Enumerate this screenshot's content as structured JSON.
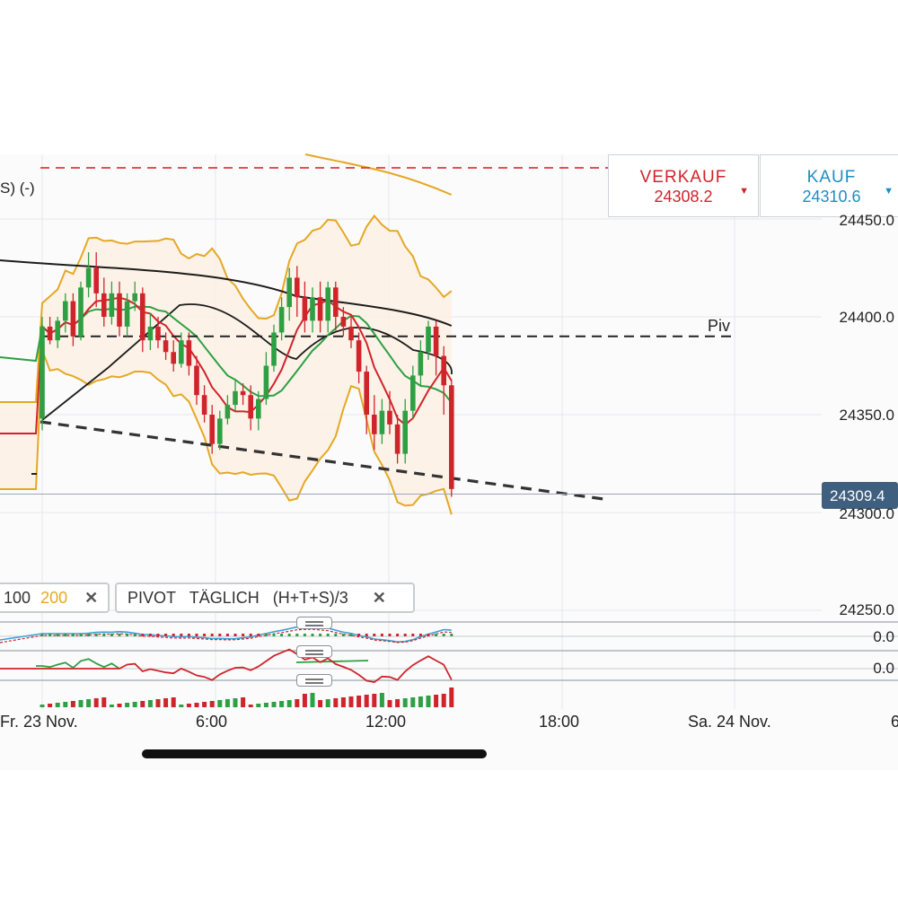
{
  "header": {
    "indicator_text": "S) (-)"
  },
  "sell": {
    "label": "VERKAUF",
    "price": "24308.2",
    "color": "#d0242b"
  },
  "buy": {
    "label": "KAUF",
    "price": "24310.6",
    "color": "#1a8fc2"
  },
  "pivot_label": "Piv",
  "current_price": "24309.4",
  "y_axis": {
    "ticks": [
      "24450.0",
      "24400.0",
      "24350.0",
      "24300.0",
      "24250.0"
    ]
  },
  "oscillators": {
    "osc1_value": "0.0",
    "osc2_value": "0.0"
  },
  "x_axis": {
    "ticks": [
      "Fr. 23 Nov.",
      "6:00",
      "12:00",
      "18:00",
      "Sa. 24 Nov.",
      "6"
    ]
  },
  "legend_ma": {
    "ma100": "100",
    "ma200": "200",
    "close": "✕"
  },
  "legend_pivot": {
    "name": "PIVOT",
    "mode": "TÄGLICH",
    "formula": "(H+T+S)/3",
    "close": "✕"
  },
  "colors": {
    "up": "#2ea043",
    "down": "#d0242b",
    "bollinger": "#e5a823",
    "pivot": "#222222",
    "price_tag": "#3f5f7f"
  },
  "chart_data": {
    "type": "candlestick",
    "y_ticks": [
      24450,
      24400,
      24350,
      24300,
      24250
    ],
    "x_ticks": [
      "Fr. 23 Nov.",
      "6:00",
      "12:00",
      "18:00",
      "Sa. 24 Nov."
    ],
    "pivot": 24390,
    "current": 24309.4,
    "ylim": [
      24240,
      24470
    ],
    "candles": [
      [
        24348,
        24395,
        24342,
        24400
      ],
      [
        24395,
        24388,
        24386,
        24400
      ],
      [
        24388,
        24398,
        24384,
        24400
      ],
      [
        24398,
        24408,
        24392,
        24412
      ],
      [
        24408,
        24390,
        24385,
        24412
      ],
      [
        24390,
        24415,
        24388,
        24418
      ],
      [
        24415,
        24425,
        24410,
        24433
      ],
      [
        24425,
        24412,
        24405,
        24433
      ],
      [
        24412,
        24400,
        24395,
        24420
      ],
      [
        24400,
        24412,
        24396,
        24418
      ],
      [
        24412,
        24395,
        24390,
        24418
      ],
      [
        24395,
        24408,
        24390,
        24412
      ],
      [
        24408,
        24412,
        24403,
        24418
      ],
      [
        24412,
        24388,
        24382,
        24415
      ],
      [
        24388,
        24395,
        24383,
        24402
      ],
      [
        24395,
        24388,
        24384,
        24400
      ],
      [
        24388,
        24382,
        24378,
        24392
      ],
      [
        24382,
        24376,
        24372,
        24388
      ],
      [
        24376,
        24388,
        24374,
        24392
      ],
      [
        24388,
        24375,
        24370,
        24392
      ],
      [
        24375,
        24360,
        24355,
        24380
      ],
      [
        24360,
        24350,
        24346,
        24365
      ],
      [
        24350,
        24335,
        24330,
        24355
      ],
      [
        24335,
        24348,
        24332,
        24352
      ],
      [
        24348,
        24355,
        24345,
        24360
      ],
      [
        24355,
        24362,
        24352,
        24368
      ],
      [
        24362,
        24360,
        24355,
        24366
      ],
      [
        24360,
        24348,
        24342,
        24365
      ],
      [
        24348,
        24358,
        24342,
        24362
      ],
      [
        24358,
        24375,
        24355,
        24382
      ],
      [
        24375,
        24392,
        24372,
        24396
      ],
      [
        24392,
        24405,
        24388,
        24410
      ],
      [
        24405,
        24420,
        24398,
        24425
      ],
      [
        24420,
        24410,
        24400,
        24426
      ],
      [
        24410,
        24398,
        24392,
        24418
      ],
      [
        24398,
        24410,
        24392,
        24415
      ],
      [
        24410,
        24398,
        24392,
        24418
      ],
      [
        24398,
        24415,
        24392,
        24418
      ],
      [
        24415,
        24400,
        24393,
        24418
      ],
      [
        24400,
        24395,
        24390,
        24405
      ],
      [
        24395,
        24388,
        24384,
        24400
      ],
      [
        24388,
        24372,
        24366,
        24392
      ],
      [
        24372,
        24350,
        24340,
        24375
      ],
      [
        24350,
        24340,
        24332,
        24360
      ],
      [
        24340,
        24352,
        24335,
        24358
      ],
      [
        24352,
        24345,
        24340,
        24362
      ],
      [
        24345,
        24330,
        24325,
        24350
      ],
      [
        24330,
        24352,
        24325,
        24358
      ],
      [
        24352,
        24370,
        24348,
        24375
      ],
      [
        24370,
        24382,
        24365,
        24388
      ],
      [
        24382,
        24395,
        24378,
        24398
      ],
      [
        24395,
        24380,
        24370,
        24398
      ],
      [
        24380,
        24365,
        24350,
        24385
      ],
      [
        24365,
        24312,
        24308,
        24368
      ]
    ]
  }
}
